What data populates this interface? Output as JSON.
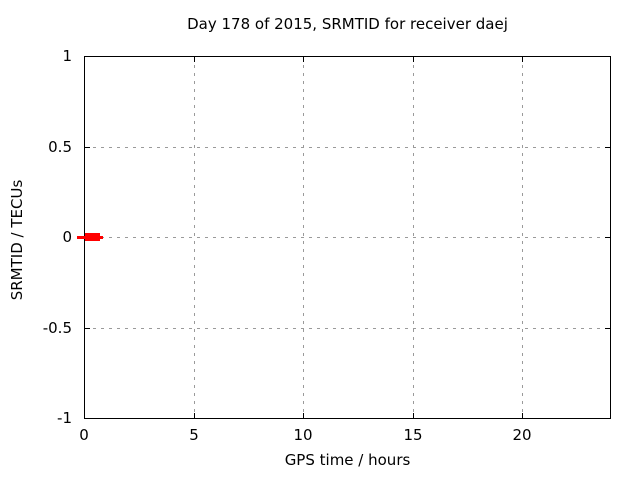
{
  "chart_data": {
    "type": "line",
    "title": "Day 178 of 2015, SRMTID for receiver daej",
    "xlabel": "GPS time / hours",
    "ylabel": "SRMTID / TECUs",
    "xlim": [
      0,
      24
    ],
    "ylim": [
      -1,
      1
    ],
    "xticks": {
      "values": [
        0,
        5,
        10,
        15,
        20
      ],
      "labels": [
        "0",
        "5",
        "10",
        "15",
        "20"
      ]
    },
    "yticks": {
      "values": [
        1,
        0.5,
        0,
        -0.5,
        -1
      ],
      "labels": [
        "1",
        "0.5",
        "0",
        "-0.5",
        "-1"
      ]
    },
    "grid": true,
    "legend_position": "none",
    "colors": {
      "background": "#ffffff",
      "axis": "#000000",
      "grid": "#9a9a9a",
      "text": "#000000",
      "series": "#ff0000"
    },
    "series": [
      {
        "name": "SRMTID",
        "color": "#ff0000",
        "points": [
          {
            "x": 0.0,
            "y": 0.0
          },
          {
            "x": 0.25,
            "y": 0.0
          },
          {
            "x": 0.5,
            "y": 0.0
          },
          {
            "x": 0.75,
            "y": 0.0
          }
        ],
        "segment": {
          "x_from": -0.32,
          "x_to": 0.85,
          "y": 0.0,
          "thick_x_from": 0.05,
          "thick_x_to": 0.73
        }
      }
    ]
  }
}
